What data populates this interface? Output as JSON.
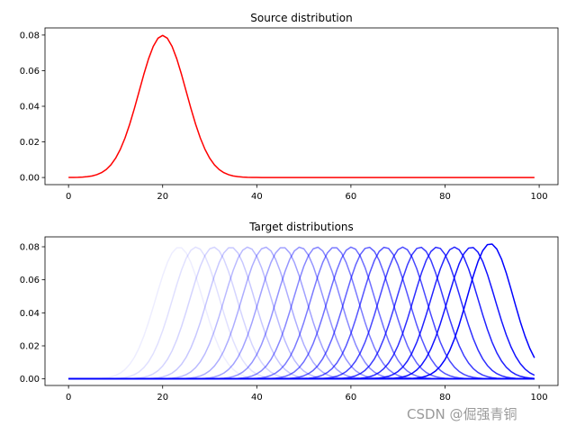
{
  "chart_data": [
    {
      "type": "line",
      "title": "Source distribution",
      "xlabel": "",
      "ylabel": "",
      "x_range": [
        0,
        99
      ],
      "x_step": 1,
      "xlim": [
        -5,
        104
      ],
      "ylim": [
        -0.004,
        0.084
      ],
      "xticks": [
        "0",
        "20",
        "40",
        "60",
        "80",
        "100"
      ],
      "yticks": [
        "0.00",
        "0.02",
        "0.04",
        "0.06",
        "0.08"
      ],
      "grid": false,
      "series": [
        {
          "shape": "gaussian",
          "mean": 20,
          "std": 5,
          "color": "#ff0000",
          "alpha": 1
        }
      ]
    },
    {
      "type": "line",
      "title": "Target distributions",
      "xlabel": "",
      "ylabel": "",
      "x_range": [
        0,
        99
      ],
      "x_step": 1,
      "xlim": [
        -5,
        104
      ],
      "ylim": [
        -0.004,
        0.086
      ],
      "xticks": [
        "0",
        "20",
        "40",
        "60",
        "80",
        "100"
      ],
      "yticks": [
        "0.00",
        "0.02",
        "0.04",
        "0.06",
        "0.08"
      ],
      "grid": false,
      "color": "#0000ff",
      "series": [
        {
          "shape": "gaussian",
          "mean": 23.5,
          "std": 5,
          "alpha": 0.07
        },
        {
          "shape": "gaussian",
          "mean": 27.1,
          "std": 5,
          "alpha": 0.12
        },
        {
          "shape": "gaussian",
          "mean": 30.8,
          "std": 5,
          "alpha": 0.17
        },
        {
          "shape": "gaussian",
          "mean": 34.5,
          "std": 5,
          "alpha": 0.22
        },
        {
          "shape": "gaussian",
          "mean": 38.1,
          "std": 5,
          "alpha": 0.27
        },
        {
          "shape": "gaussian",
          "mean": 41.8,
          "std": 5,
          "alpha": 0.32
        },
        {
          "shape": "gaussian",
          "mean": 45.5,
          "std": 5,
          "alpha": 0.37
        },
        {
          "shape": "gaussian",
          "mean": 49.2,
          "std": 5,
          "alpha": 0.42
        },
        {
          "shape": "gaussian",
          "mean": 52.8,
          "std": 5,
          "alpha": 0.47
        },
        {
          "shape": "gaussian",
          "mean": 56.5,
          "std": 5,
          "alpha": 0.52
        },
        {
          "shape": "gaussian",
          "mean": 60.1,
          "std": 5,
          "alpha": 0.57
        },
        {
          "shape": "gaussian",
          "mean": 63.7,
          "std": 5,
          "alpha": 0.62
        },
        {
          "shape": "gaussian",
          "mean": 67.3,
          "std": 5,
          "alpha": 0.67
        },
        {
          "shape": "gaussian",
          "mean": 71.0,
          "std": 5,
          "alpha": 0.72
        },
        {
          "shape": "gaussian",
          "mean": 74.7,
          "std": 5,
          "alpha": 0.77
        },
        {
          "shape": "gaussian",
          "mean": 78.3,
          "std": 5,
          "alpha": 0.82
        },
        {
          "shape": "gaussian",
          "mean": 82.0,
          "std": 5,
          "alpha": 0.87
        },
        {
          "shape": "gaussian",
          "mean": 85.6,
          "std": 5,
          "alpha": 0.93
        },
        {
          "shape": "gaussian",
          "mean": 89.6,
          "std": 4.87,
          "alpha": 1
        }
      ]
    }
  ],
  "watermark": "CSDN @倔强青铜"
}
